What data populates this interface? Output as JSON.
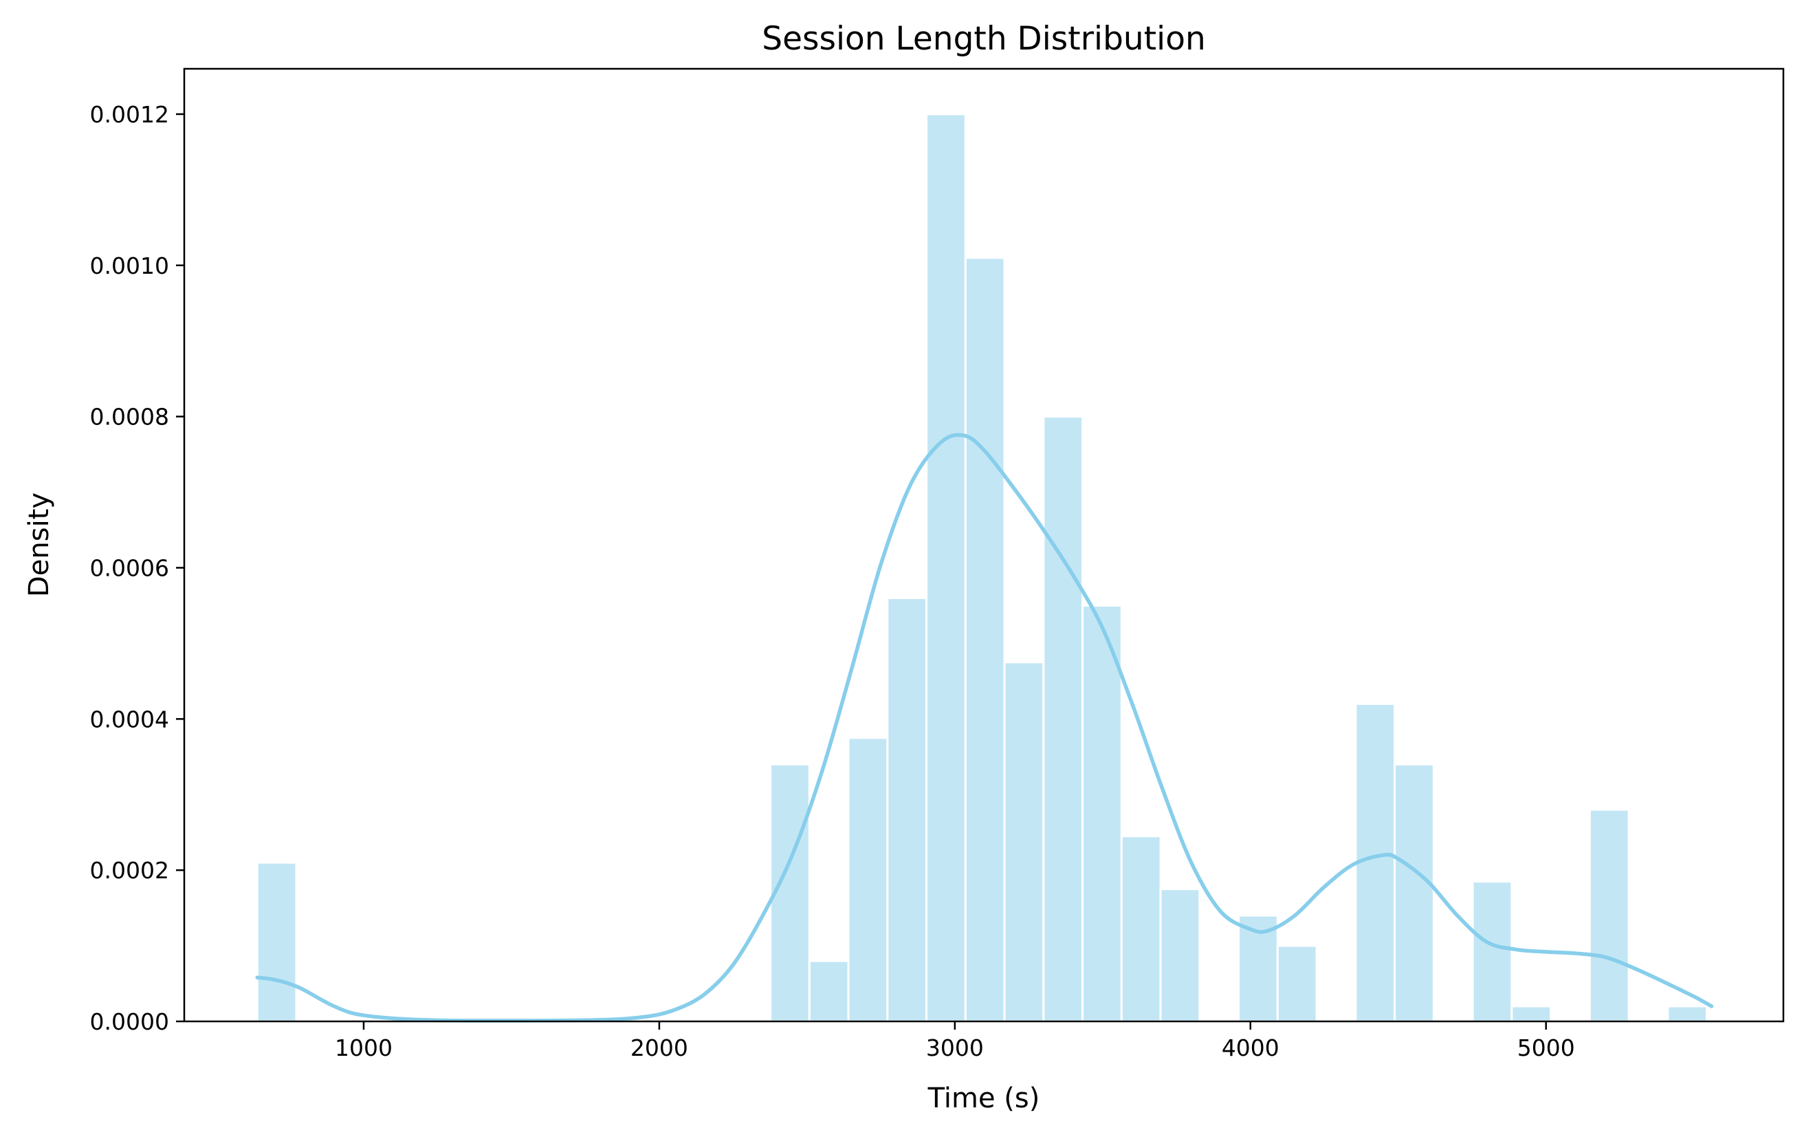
{
  "chart_data": {
    "type": "bar",
    "title": "Session Length Distribution",
    "xlabel": "Time (s)",
    "ylabel": "Density",
    "xlim": [
      393,
      5803
    ],
    "ylim": [
      0,
      0.00126
    ],
    "xticks": [
      1000,
      2000,
      3000,
      4000,
      5000
    ],
    "xtick_labels": [
      "1000",
      "2000",
      "3000",
      "4000",
      "5000"
    ],
    "yticks": [
      0,
      0.0002,
      0.0004,
      0.0006,
      0.0008,
      0.001,
      0.0012
    ],
    "ytick_labels": [
      "0.0000",
      "0.0002",
      "0.0004",
      "0.0006",
      "0.0008",
      "0.0010",
      "0.0012"
    ],
    "grid": false,
    "legend": "none",
    "colors": {
      "bar": "#87ceeb",
      "kde": "#87ceeb",
      "edge": "#ffffff"
    },
    "bins": [
      {
        "x0": 640,
        "x1": 772,
        "density": 0.00021
      },
      {
        "x0": 2376,
        "x1": 2508,
        "density": 0.00034
      },
      {
        "x0": 2508,
        "x1": 2640,
        "density": 8e-05
      },
      {
        "x0": 2640,
        "x1": 2772,
        "density": 0.000375
      },
      {
        "x0": 2772,
        "x1": 2904,
        "density": 0.00056
      },
      {
        "x0": 2904,
        "x1": 3036,
        "density": 0.0012
      },
      {
        "x0": 3036,
        "x1": 3168,
        "density": 0.00101
      },
      {
        "x0": 3168,
        "x1": 3300,
        "density": 0.000475
      },
      {
        "x0": 3300,
        "x1": 3432,
        "density": 0.0008
      },
      {
        "x0": 3432,
        "x1": 3564,
        "density": 0.00055
      },
      {
        "x0": 3564,
        "x1": 3696,
        "density": 0.000245
      },
      {
        "x0": 3696,
        "x1": 3828,
        "density": 0.000175
      },
      {
        "x0": 3960,
        "x1": 4092,
        "density": 0.00014
      },
      {
        "x0": 4092,
        "x1": 4224,
        "density": 0.0001
      },
      {
        "x0": 4356,
        "x1": 4488,
        "density": 0.00042
      },
      {
        "x0": 4488,
        "x1": 4620,
        "density": 0.00034
      },
      {
        "x0": 4752,
        "x1": 4884,
        "density": 0.000185
      },
      {
        "x0": 4884,
        "x1": 5016,
        "density": 2e-05
      },
      {
        "x0": 5148,
        "x1": 5280,
        "density": 0.00028
      },
      {
        "x0": 5412,
        "x1": 5544,
        "density": 2e-05
      }
    ],
    "kde": {
      "x": [
        640,
        700,
        780,
        900,
        1000,
        1200,
        1500,
        1800,
        1950,
        2050,
        2150,
        2250,
        2350,
        2450,
        2550,
        2650,
        2750,
        2850,
        2950,
        3030,
        3100,
        3200,
        3300,
        3400,
        3500,
        3600,
        3700,
        3800,
        3900,
        4000,
        4060,
        4150,
        4250,
        4350,
        4450,
        4500,
        4600,
        4700,
        4800,
        4900,
        5000,
        5100,
        5200,
        5300,
        5400,
        5500,
        5560
      ],
      "y": [
        5.8e-05,
        5.5e-05,
        4.5e-05,
        2e-05,
        8e-06,
        2e-06,
        1e-06,
        2e-06,
        6e-06,
        1.5e-05,
        3.5e-05,
        7.5e-05,
        0.00014,
        0.00022,
        0.00033,
        0.000465,
        0.000605,
        0.00071,
        0.000765,
        0.000775,
        0.000755,
        0.000705,
        0.00065,
        0.00059,
        0.00052,
        0.00042,
        0.00031,
        0.00021,
        0.000145,
        0.000122,
        0.00012,
        0.00014,
        0.000178,
        0.000208,
        0.00022,
        0.000215,
        0.000185,
        0.00014,
        0.000105,
        9.5e-05,
        9.2e-05,
        9e-05,
        8.5e-05,
        7e-05,
        5.2e-05,
        3.3e-05,
        2e-05
      ]
    }
  }
}
